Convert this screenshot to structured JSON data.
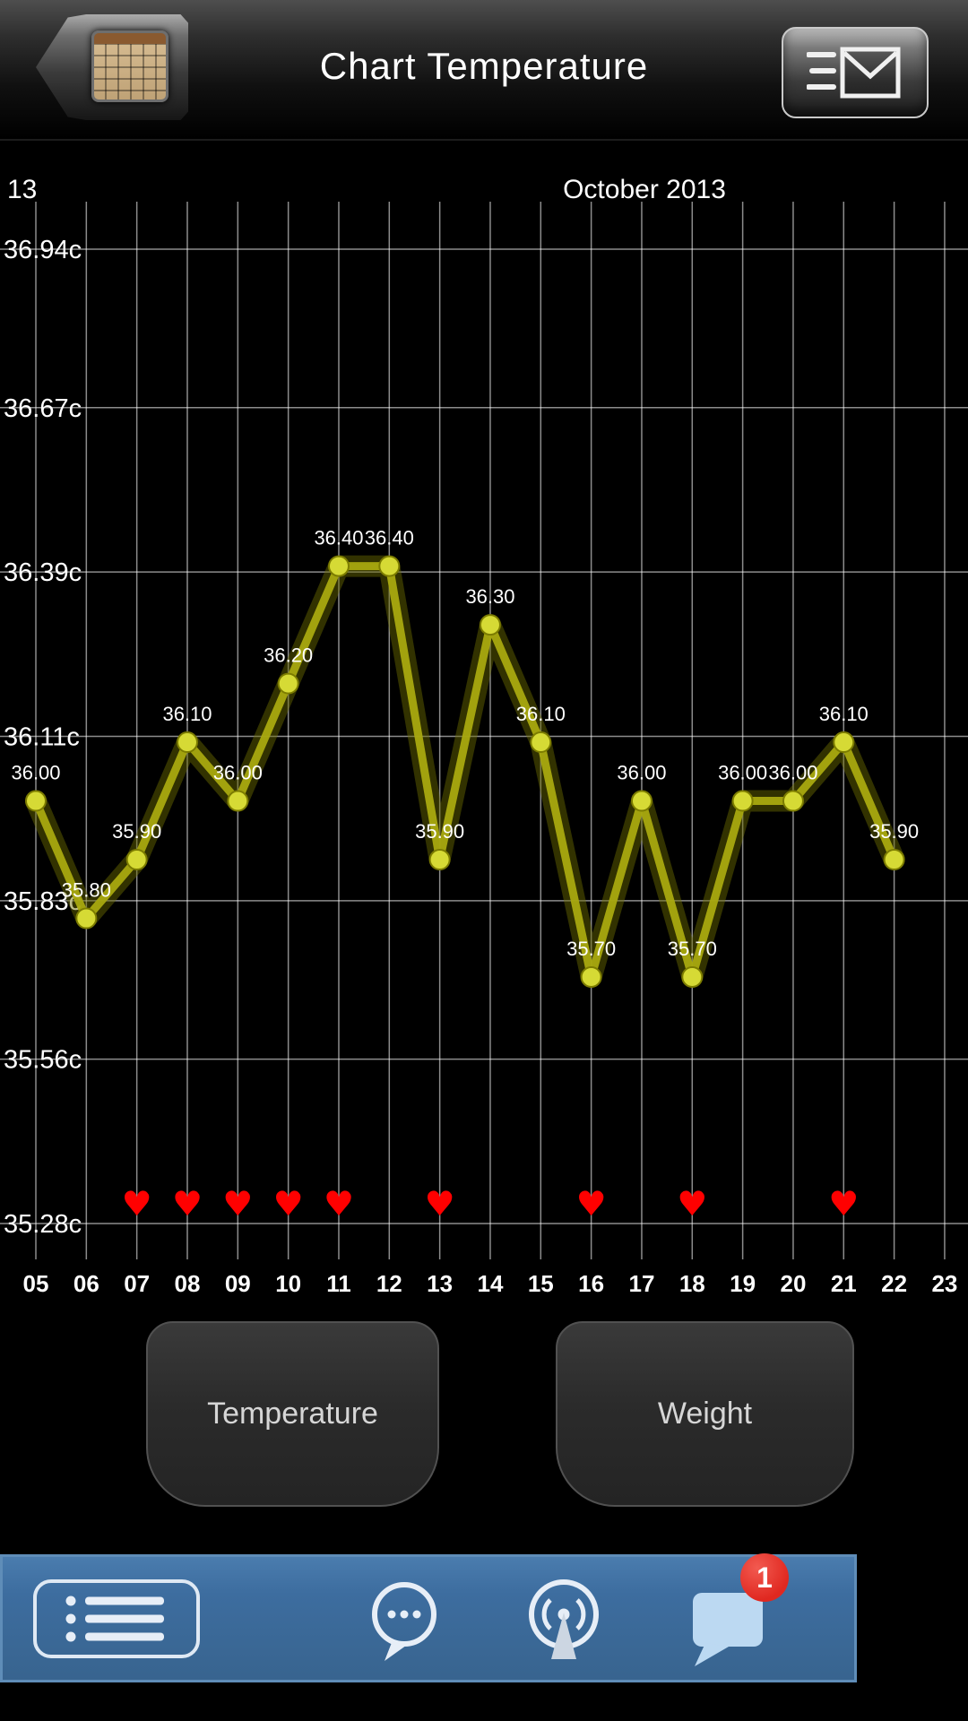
{
  "header": {
    "title": "Chart Temperature"
  },
  "chart_data": {
    "type": "line",
    "title": "October 2013",
    "left_partial_label": "13",
    "unit": "c",
    "ylim": [
      35.28,
      36.94
    ],
    "grid": true,
    "y_ticks": [
      {
        "label": "36.94c",
        "value": 36.94
      },
      {
        "label": "36.67c",
        "value": 36.67
      },
      {
        "label": "36.39c",
        "value": 36.39
      },
      {
        "label": "36.11c",
        "value": 36.11
      },
      {
        "label": "35.83c",
        "value": 35.83
      },
      {
        "label": "35.56c",
        "value": 35.56
      },
      {
        "label": "35.28c",
        "value": 35.28
      }
    ],
    "x_ticks": [
      {
        "label": "05",
        "day": 5
      },
      {
        "label": "06",
        "day": 6
      },
      {
        "label": "07",
        "day": 7
      },
      {
        "label": "08",
        "day": 8
      },
      {
        "label": "09",
        "day": 9
      },
      {
        "label": "10",
        "day": 10
      },
      {
        "label": "11",
        "day": 11
      },
      {
        "label": "12",
        "day": 12
      },
      {
        "label": "13",
        "day": 13
      },
      {
        "label": "14",
        "day": 14
      },
      {
        "label": "15",
        "day": 15
      },
      {
        "label": "16",
        "day": 16
      },
      {
        "label": "17",
        "day": 17
      },
      {
        "label": "18",
        "day": 18
      },
      {
        "label": "19",
        "day": 19
      },
      {
        "label": "20",
        "day": 20
      },
      {
        "label": "21",
        "day": 21
      },
      {
        "label": "22",
        "day": 22
      },
      {
        "label": "23",
        "day": 23
      }
    ],
    "series": [
      {
        "name": "Temperature",
        "color": "#a9a90f",
        "glow_color": "#6f6f00",
        "marker_color": "#d6da35",
        "days": [
          5,
          6,
          7,
          8,
          9,
          10,
          11,
          12,
          13,
          14,
          15,
          16,
          17,
          18,
          19,
          20,
          21,
          22
        ],
        "values": [
          36.0,
          35.8,
          35.9,
          36.1,
          36.0,
          36.2,
          36.4,
          36.4,
          35.9,
          36.3,
          36.1,
          35.7,
          36.0,
          35.7,
          36.0,
          36.0,
          36.1,
          35.9
        ],
        "point_labels": [
          "36.00",
          "35.80",
          "35.90",
          "36.10",
          "36.00",
          "36.20",
          "36.40",
          "36.40",
          "35.90",
          "36.30",
          "36.10",
          "35.70",
          "36.00",
          "35.70",
          "36.00",
          "36.00",
          "36.10",
          "35.90"
        ]
      }
    ],
    "heart_marker_days": [
      7,
      8,
      9,
      10,
      11,
      13,
      16,
      18,
      21
    ],
    "heart_color": "#ff0000",
    "heart_glyph": "♥"
  },
  "tabs": [
    {
      "label": "Temperature"
    },
    {
      "label": "Weight"
    }
  ],
  "toolbar": {
    "badge_count": "1",
    "icons": [
      "list",
      "chat-ellipsis",
      "broadcast",
      "messages"
    ]
  },
  "colors": {
    "toolbar_blue": "#3d6d9f",
    "line_olive": "#a9a90f",
    "badge_red": "#e02820"
  }
}
